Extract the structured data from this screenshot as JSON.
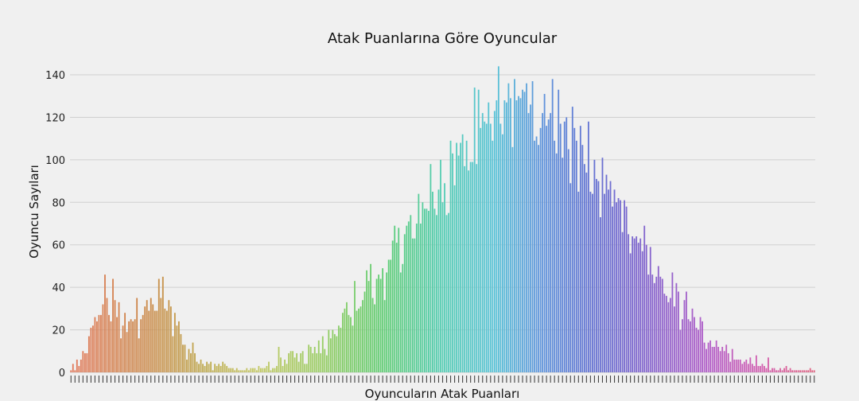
{
  "chart_data": {
    "type": "bar",
    "title": "Atak Puanlarına Göre Oyuncular",
    "xlabel": "Oyuncuların Atak Puanları",
    "ylabel": "Oyuncu Sayıları",
    "ylim": [
      0,
      146
    ],
    "yticks": [
      0,
      20,
      40,
      60,
      80,
      100,
      120,
      140
    ],
    "grid": "horizontal",
    "x_tick_labels_unreadable": true,
    "values": [
      1,
      4,
      1,
      6,
      3,
      6,
      10,
      9,
      9,
      17,
      21,
      22,
      26,
      24,
      27,
      27,
      32,
      46,
      35,
      27,
      24,
      44,
      34,
      26,
      33,
      16,
      22,
      28,
      19,
      24,
      25,
      24,
      25,
      35,
      16,
      25,
      27,
      31,
      34,
      29,
      35,
      32,
      29,
      29,
      44,
      35,
      45,
      30,
      29,
      34,
      31,
      17,
      28,
      22,
      24,
      18,
      13,
      13,
      6,
      11,
      9,
      14,
      9,
      5,
      4,
      6,
      4,
      3,
      5,
      4,
      5,
      1,
      4,
      3,
      4,
      3,
      5,
      4,
      3,
      2,
      2,
      2,
      1,
      2,
      1,
      1,
      1,
      1,
      2,
      1,
      2,
      2,
      2,
      1,
      3,
      2,
      2,
      2,
      3,
      5,
      1,
      2,
      2,
      3,
      12,
      7,
      3,
      6,
      4,
      9,
      10,
      10,
      7,
      9,
      5,
      9,
      10,
      4,
      4,
      13,
      12,
      9,
      12,
      9,
      15,
      9,
      17,
      11,
      8,
      20,
      16,
      20,
      18,
      17,
      22,
      21,
      28,
      30,
      33,
      27,
      26,
      22,
      43,
      29,
      30,
      31,
      34,
      38,
      48,
      43,
      51,
      35,
      32,
      44,
      46,
      44,
      49,
      34,
      47,
      53,
      53,
      62,
      69,
      61,
      68,
      47,
      51,
      65,
      69,
      71,
      74,
      63,
      63,
      70,
      84,
      70,
      80,
      77,
      77,
      76,
      98,
      85,
      77,
      74,
      86,
      100,
      80,
      89,
      74,
      75,
      109,
      103,
      88,
      108,
      102,
      108,
      112,
      97,
      109,
      95,
      99,
      99,
      134,
      98,
      133,
      115,
      122,
      118,
      117,
      127,
      117,
      109,
      123,
      128,
      144,
      117,
      112,
      128,
      127,
      136,
      129,
      106,
      138,
      128,
      130,
      129,
      133,
      132,
      136,
      122,
      126,
      137,
      109,
      111,
      107,
      115,
      122,
      131,
      116,
      119,
      122,
      138,
      109,
      103,
      133,
      117,
      101,
      118,
      120,
      105,
      89,
      125,
      115,
      109,
      85,
      116,
      107,
      98,
      94,
      118,
      85,
      84,
      100,
      91,
      90,
      73,
      101,
      84,
      93,
      86,
      90,
      78,
      86,
      80,
      82,
      81,
      66,
      81,
      78,
      65,
      56,
      64,
      63,
      64,
      61,
      63,
      57,
      69,
      60,
      46,
      59,
      46,
      42,
      45,
      50,
      45,
      44,
      37,
      36,
      33,
      35,
      47,
      31,
      42,
      38,
      20,
      25,
      34,
      38,
      25,
      24,
      30,
      26,
      21,
      20,
      26,
      24,
      14,
      11,
      14,
      15,
      12,
      12,
      15,
      12,
      10,
      12,
      10,
      13,
      9,
      5,
      11,
      6,
      6,
      6,
      6,
      4,
      5,
      6,
      4,
      7,
      4,
      3,
      8,
      3,
      3,
      4,
      3,
      2,
      7,
      1,
      2,
      2,
      1,
      1,
      2,
      1,
      2,
      3,
      1,
      2,
      1,
      1,
      1,
      1,
      1,
      1,
      1,
      1,
      1,
      2,
      1,
      1
    ]
  }
}
